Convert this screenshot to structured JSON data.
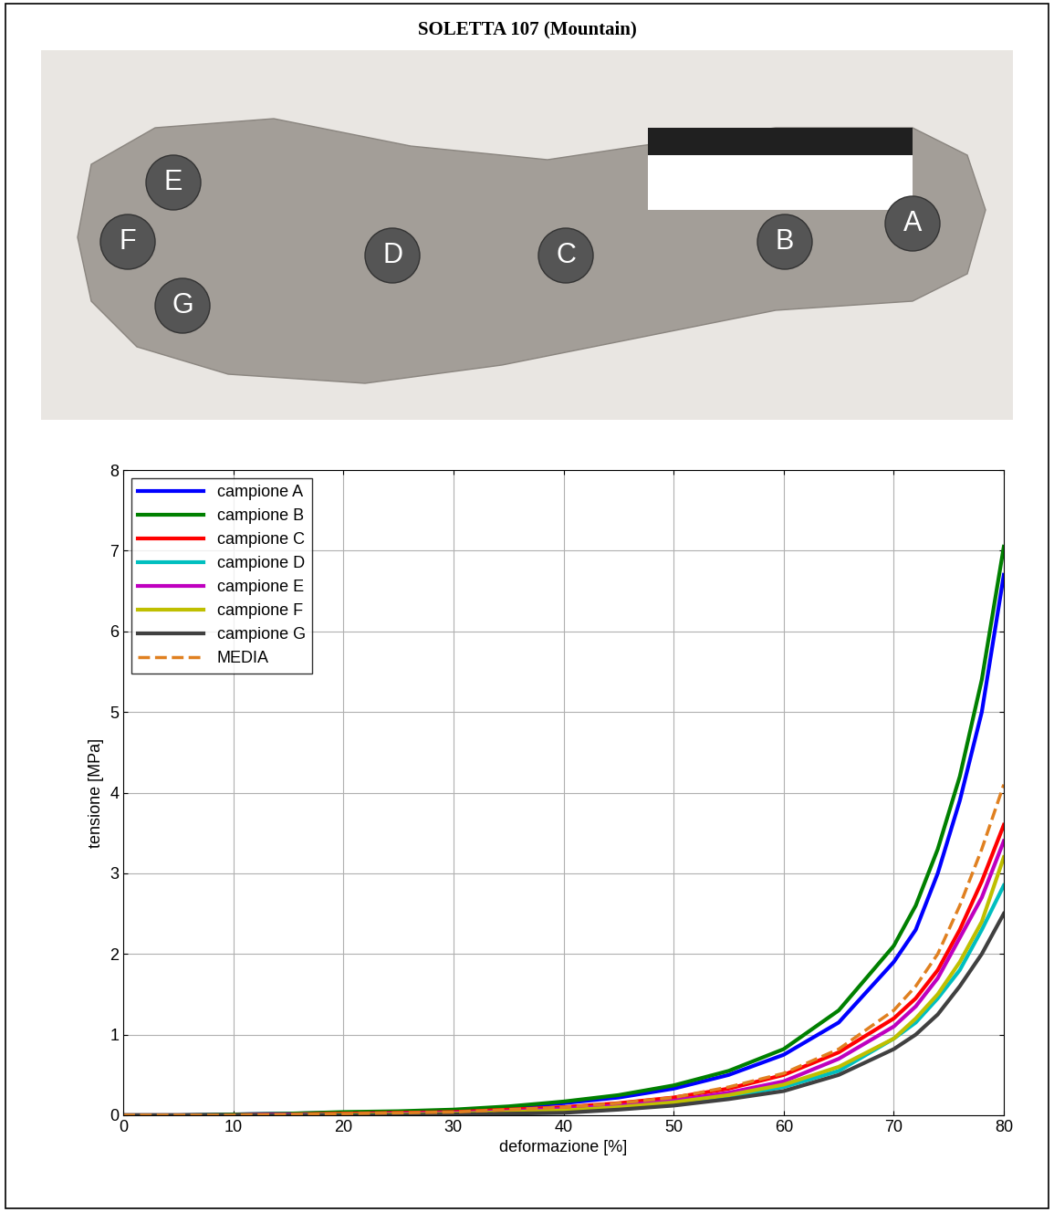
{
  "header": {
    "title": "SOLETTA 107 (Mountain)"
  },
  "photo": {
    "points": [
      "A",
      "B",
      "C",
      "D",
      "E",
      "F",
      "G"
    ]
  },
  "chart_data": {
    "type": "line",
    "x_label": "deformazione [%]",
    "y_label": "tensione [MPa]",
    "x": [
      0,
      5,
      10,
      15,
      20,
      25,
      30,
      35,
      40,
      45,
      50,
      55,
      60,
      65,
      70,
      72,
      74,
      76,
      78,
      80
    ],
    "series": [
      {
        "name": "campione A",
        "color": "#0000ff",
        "line_style": "solid",
        "values": [
          0,
          0,
          0.01,
          0.02,
          0.03,
          0.04,
          0.06,
          0.1,
          0.15,
          0.22,
          0.33,
          0.5,
          0.75,
          1.15,
          1.9,
          2.3,
          3.0,
          3.9,
          5.0,
          6.7
        ]
      },
      {
        "name": "campione B",
        "color": "#008000",
        "line_style": "solid",
        "values": [
          0,
          0,
          0.01,
          0.02,
          0.04,
          0.05,
          0.07,
          0.11,
          0.17,
          0.25,
          0.37,
          0.55,
          0.82,
          1.3,
          2.1,
          2.6,
          3.3,
          4.2,
          5.4,
          7.05
        ]
      },
      {
        "name": "campione C",
        "color": "#ff0000",
        "line_style": "solid",
        "values": [
          0,
          0,
          0,
          0.01,
          0.02,
          0.03,
          0.04,
          0.07,
          0.1,
          0.15,
          0.22,
          0.33,
          0.5,
          0.78,
          1.2,
          1.45,
          1.8,
          2.3,
          2.9,
          3.6
        ]
      },
      {
        "name": "campione D",
        "color": "#00bfbf",
        "line_style": "solid",
        "values": [
          0,
          0,
          0,
          0,
          0.01,
          0.01,
          0.02,
          0.04,
          0.06,
          0.1,
          0.15,
          0.23,
          0.35,
          0.55,
          0.95,
          1.15,
          1.45,
          1.8,
          2.3,
          2.85
        ]
      },
      {
        "name": "campione E",
        "color": "#bf00bf",
        "line_style": "solid",
        "values": [
          0,
          0,
          0,
          0.01,
          0.01,
          0.02,
          0.03,
          0.05,
          0.08,
          0.12,
          0.18,
          0.28,
          0.42,
          0.7,
          1.1,
          1.35,
          1.7,
          2.2,
          2.7,
          3.4
        ]
      },
      {
        "name": "campione F",
        "color": "#bfbf00",
        "line_style": "solid",
        "values": [
          0,
          0,
          0,
          0,
          0.01,
          0.01,
          0.02,
          0.04,
          0.06,
          0.1,
          0.16,
          0.25,
          0.38,
          0.6,
          0.95,
          1.2,
          1.5,
          1.9,
          2.4,
          3.2
        ]
      },
      {
        "name": "campione G",
        "color": "#404040",
        "line_style": "solid",
        "values": [
          0,
          0,
          0,
          0,
          0,
          0,
          0.01,
          0.02,
          0.03,
          0.07,
          0.12,
          0.2,
          0.3,
          0.5,
          0.82,
          1.0,
          1.25,
          1.6,
          2.0,
          2.5
        ]
      },
      {
        "name": "MEDIA",
        "color": "#e08020",
        "line_style": "dashed",
        "values": [
          0,
          0,
          0,
          0.01,
          0.02,
          0.03,
          0.04,
          0.07,
          0.1,
          0.15,
          0.22,
          0.35,
          0.52,
          0.82,
          1.3,
          1.6,
          2.0,
          2.6,
          3.3,
          4.1
        ]
      }
    ],
    "xlim": [
      0,
      80
    ],
    "xticks": [
      0,
      10,
      20,
      30,
      40,
      50,
      60,
      70,
      80
    ],
    "ylim": [
      0,
      8
    ],
    "yticks": [
      0,
      1,
      2,
      3,
      4,
      5,
      6,
      7,
      8
    ],
    "grid": true,
    "legend": "upper left"
  }
}
